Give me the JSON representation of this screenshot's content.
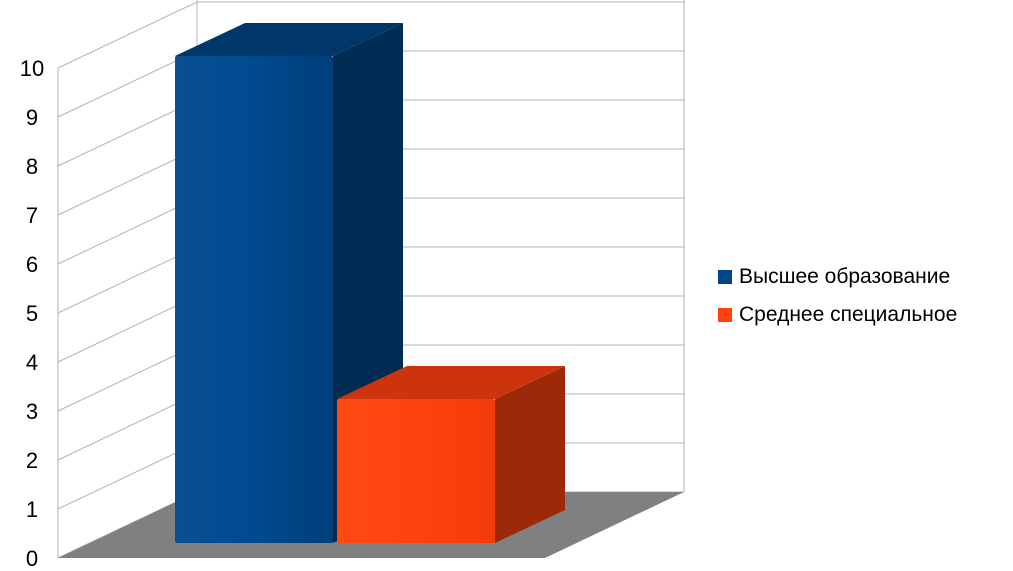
{
  "chart_data": {
    "type": "bar",
    "title": "",
    "xlabel": "",
    "ylabel": "",
    "ylim": [
      0,
      10
    ],
    "yticks": [
      "0",
      "1",
      "2",
      "3",
      "4",
      "5",
      "6",
      "7",
      "8",
      "9",
      "10"
    ],
    "grid": true,
    "three_d": true,
    "legend_position": "right",
    "series": [
      {
        "name": "Высшее образование",
        "value": 10,
        "color": "#004586"
      },
      {
        "name": "Среднее специальное",
        "value": 3,
        "color": "#ff420e"
      }
    ]
  }
}
